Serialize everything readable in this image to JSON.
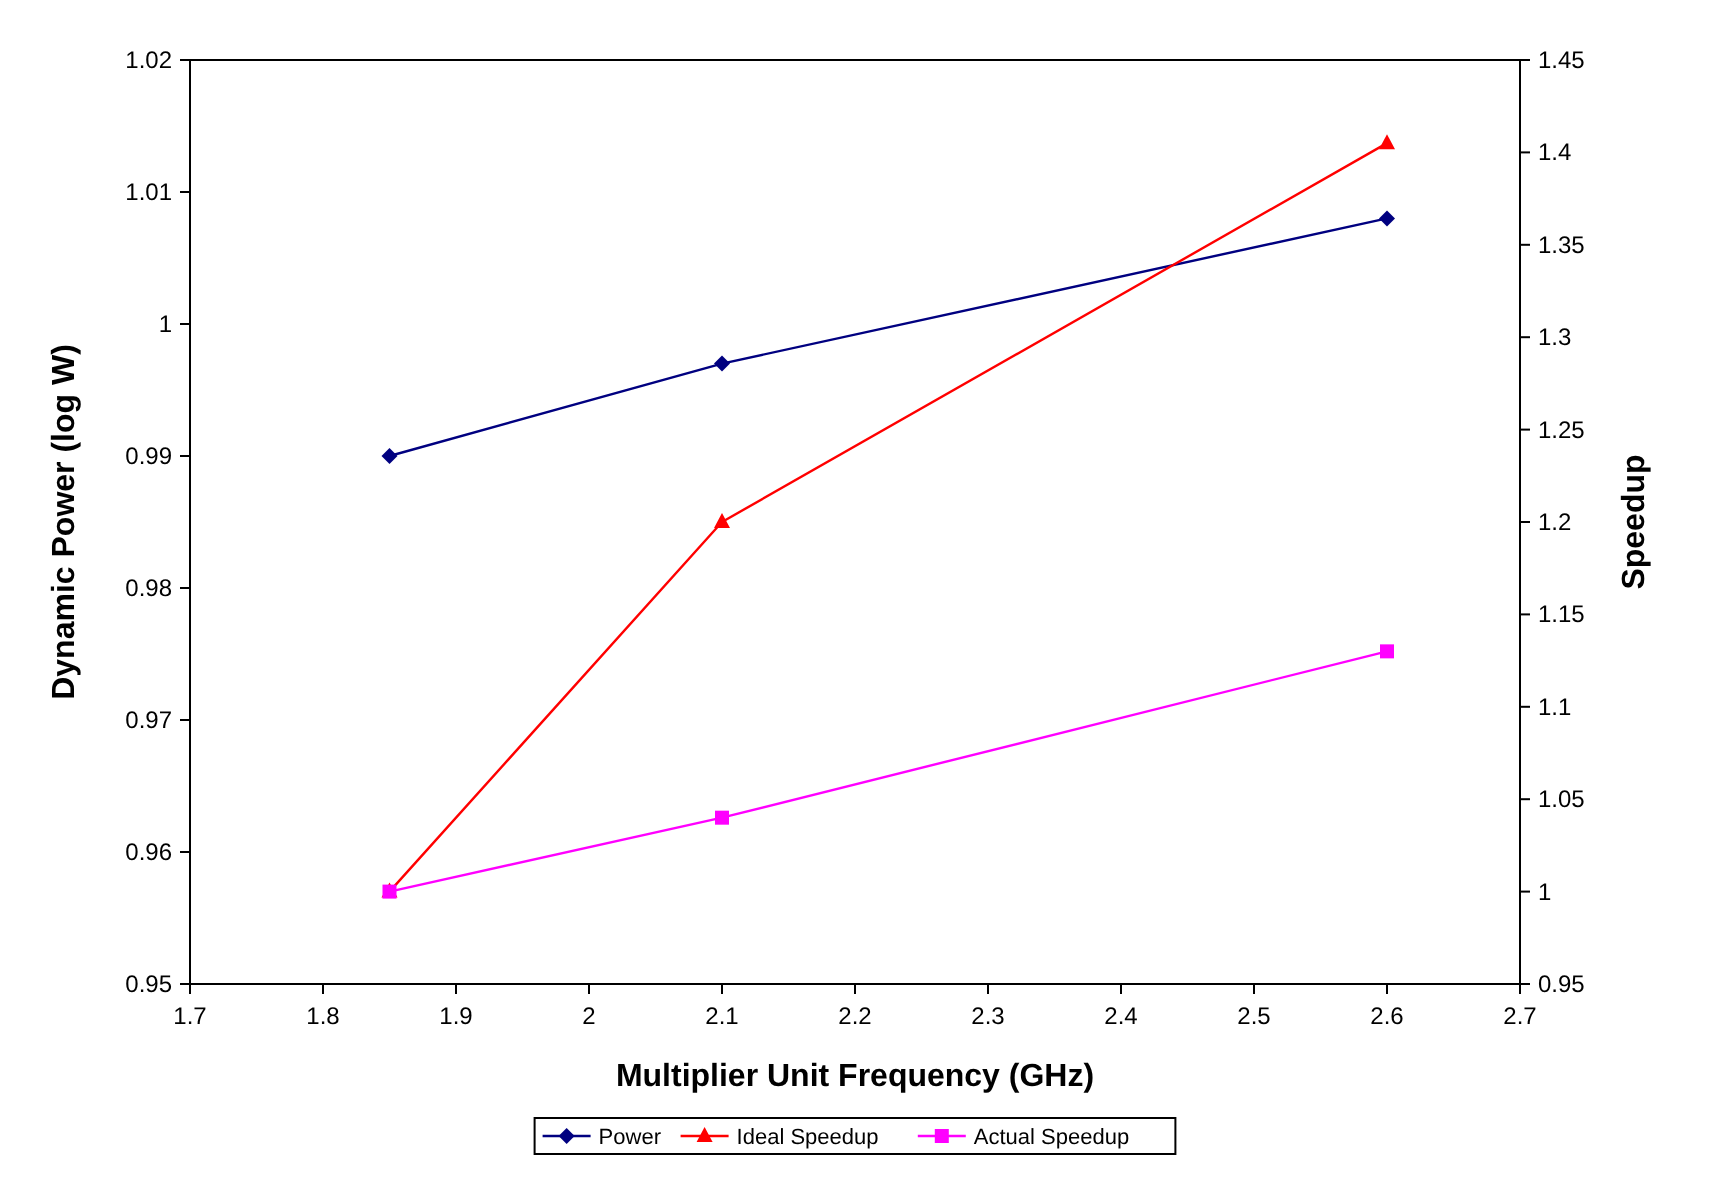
{
  "chart_data": {
    "type": "line",
    "xlabel": "Multiplier Unit Frequency (GHz)",
    "ylabel": "Dynamic Power (log W)",
    "y2label": "Speedup",
    "x": [
      1.85,
      2.1,
      2.6
    ],
    "xlim": [
      1.7,
      2.7
    ],
    "xticks": [
      1.7,
      1.8,
      1.9,
      2,
      2.1,
      2.2,
      2.3,
      2.4,
      2.5,
      2.6,
      2.7
    ],
    "ylim": [
      0.95,
      1.02
    ],
    "yticks": [
      0.95,
      0.96,
      0.97,
      0.98,
      0.99,
      1,
      1.01,
      1.02
    ],
    "y2lim": [
      0.95,
      1.45
    ],
    "y2ticks": [
      0.95,
      1,
      1.05,
      1.1,
      1.15,
      1.2,
      1.25,
      1.3,
      1.35,
      1.4,
      1.45
    ],
    "series": [
      {
        "name": "Power",
        "color": "#000080",
        "marker": "diamond",
        "values": [
          0.99,
          0.997,
          1.008
        ]
      },
      {
        "name": "Ideal Speedup",
        "color": "#ff0000",
        "marker": "triangle",
        "axis": "y2",
        "values": [
          1.0,
          1.2,
          1.405
        ]
      },
      {
        "name": "Actual Speedup",
        "color": "#ff00ff",
        "marker": "square",
        "axis": "y2",
        "values": [
          1.0,
          1.04,
          1.13
        ]
      }
    ],
    "grid": false,
    "legend": "bottom"
  }
}
